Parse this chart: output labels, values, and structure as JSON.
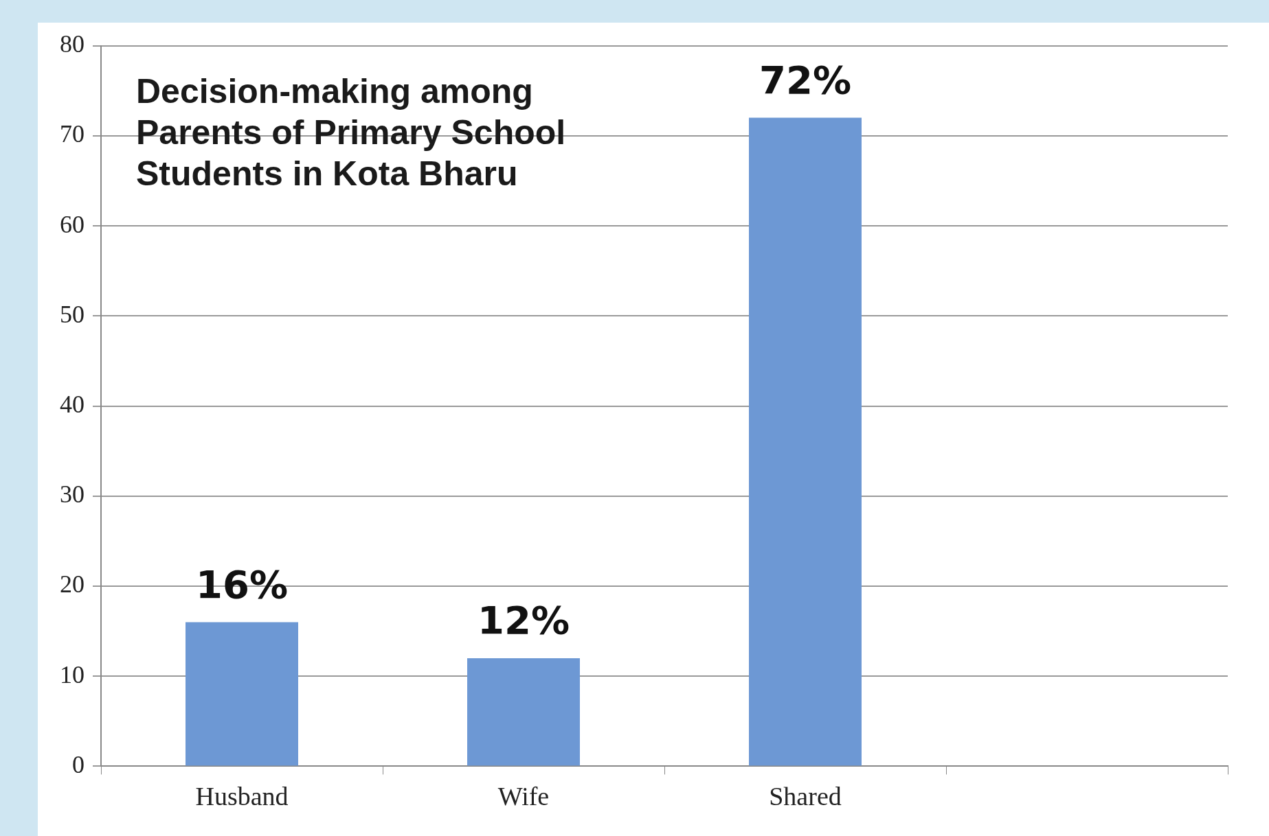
{
  "chart_data": {
    "type": "bar",
    "title": "Decision-making among\nParents of Primary School\nStudents in Kota Bharu",
    "categories": [
      "Husband",
      "Wife",
      "Shared",
      null
    ],
    "values": [
      16,
      12,
      72,
      null
    ],
    "value_labels": [
      "16%",
      "12%",
      "72%",
      null
    ],
    "color": "#6d98d4",
    "ylim": [
      0,
      80
    ],
    "yticks": [
      0,
      10,
      20,
      30,
      40,
      50,
      60,
      70,
      80
    ],
    "grid": "y",
    "legend": false
  }
}
